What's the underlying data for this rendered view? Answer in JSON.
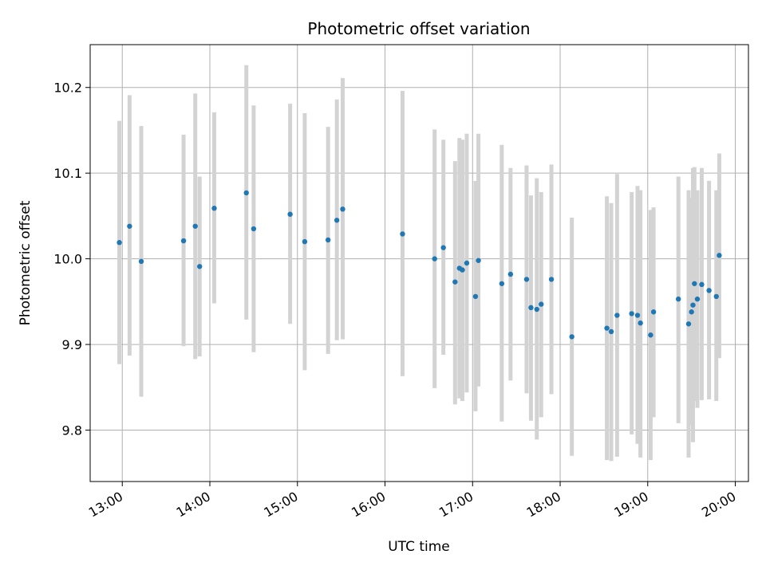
{
  "chart_data": {
    "type": "scatter",
    "title": "Photometric offset variation",
    "xlabel": "UTC time",
    "ylabel": "Photometric offset",
    "x_unit": "UTC time (HH:MM)",
    "xlim": [
      "12:38",
      "20:09"
    ],
    "ylim": [
      9.74,
      10.25
    ],
    "x_ticks": [
      "13:00",
      "14:00",
      "15:00",
      "16:00",
      "17:00",
      "18:00",
      "19:00",
      "20:00"
    ],
    "y_ticks": [
      9.8,
      9.9,
      10.0,
      10.1,
      10.2
    ],
    "y_tick_labels": [
      "9.8",
      "9.9",
      "10.0",
      "10.1",
      "10.2"
    ],
    "grid": true,
    "colors": {
      "point": "#1f77b4",
      "errorbar": "#d3d3d3",
      "grid": "#b0b0b0"
    },
    "points": [
      {
        "time": "12:58",
        "y": 10.019,
        "lo": 9.877,
        "hi": 10.161
      },
      {
        "time": "13:05",
        "y": 10.038,
        "lo": 9.887,
        "hi": 10.191
      },
      {
        "time": "13:13",
        "y": 9.997,
        "lo": 9.839,
        "hi": 10.155
      },
      {
        "time": "13:42",
        "y": 10.021,
        "lo": 9.898,
        "hi": 10.145
      },
      {
        "time": "13:50",
        "y": 10.038,
        "lo": 9.883,
        "hi": 10.193
      },
      {
        "time": "13:53",
        "y": 9.991,
        "lo": 9.886,
        "hi": 10.096
      },
      {
        "time": "14:03",
        "y": 10.059,
        "lo": 9.948,
        "hi": 10.171
      },
      {
        "time": "14:25",
        "y": 10.077,
        "lo": 9.929,
        "hi": 10.226
      },
      {
        "time": "14:30",
        "y": 10.035,
        "lo": 9.891,
        "hi": 10.179
      },
      {
        "time": "14:55",
        "y": 10.052,
        "lo": 9.924,
        "hi": 10.181
      },
      {
        "time": "15:05",
        "y": 10.02,
        "lo": 9.87,
        "hi": 10.17
      },
      {
        "time": "15:21",
        "y": 10.022,
        "lo": 9.889,
        "hi": 10.154
      },
      {
        "time": "15:27",
        "y": 10.045,
        "lo": 9.905,
        "hi": 10.186
      },
      {
        "time": "15:31",
        "y": 10.058,
        "lo": 9.906,
        "hi": 10.211
      },
      {
        "time": "16:12",
        "y": 10.029,
        "lo": 9.863,
        "hi": 10.196
      },
      {
        "time": "16:34",
        "y": 10.0,
        "lo": 9.849,
        "hi": 10.151
      },
      {
        "time": "16:40",
        "y": 10.013,
        "lo": 9.888,
        "hi": 10.139
      },
      {
        "time": "16:48",
        "y": 9.973,
        "lo": 9.83,
        "hi": 10.114
      },
      {
        "time": "16:51",
        "y": 9.989,
        "lo": 9.837,
        "hi": 10.141
      },
      {
        "time": "16:53",
        "y": 9.987,
        "lo": 9.834,
        "hi": 10.139
      },
      {
        "time": "16:56",
        "y": 9.995,
        "lo": 9.844,
        "hi": 10.146
      },
      {
        "time": "17:02",
        "y": 9.956,
        "lo": 9.822,
        "hi": 10.091
      },
      {
        "time": "17:04",
        "y": 9.998,
        "lo": 9.851,
        "hi": 10.146
      },
      {
        "time": "17:20",
        "y": 9.971,
        "lo": 9.81,
        "hi": 10.133
      },
      {
        "time": "17:26",
        "y": 9.982,
        "lo": 9.858,
        "hi": 10.106
      },
      {
        "time": "17:37",
        "y": 9.976,
        "lo": 9.843,
        "hi": 10.109
      },
      {
        "time": "17:40",
        "y": 9.943,
        "lo": 9.811,
        "hi": 10.074
      },
      {
        "time": "17:44",
        "y": 9.941,
        "lo": 9.789,
        "hi": 10.094
      },
      {
        "time": "17:47",
        "y": 9.947,
        "lo": 9.815,
        "hi": 10.078
      },
      {
        "time": "17:54",
        "y": 9.976,
        "lo": 9.842,
        "hi": 10.11
      },
      {
        "time": "18:08",
        "y": 9.909,
        "lo": 9.77,
        "hi": 10.048
      },
      {
        "time": "18:32",
        "y": 9.919,
        "lo": 9.765,
        "hi": 10.073
      },
      {
        "time": "18:35",
        "y": 9.915,
        "lo": 9.764,
        "hi": 10.065
      },
      {
        "time": "18:39",
        "y": 9.934,
        "lo": 9.769,
        "hi": 10.099
      },
      {
        "time": "18:49",
        "y": 9.936,
        "lo": 9.795,
        "hi": 10.078
      },
      {
        "time": "18:53",
        "y": 9.934,
        "lo": 9.784,
        "hi": 10.085
      },
      {
        "time": "18:55",
        "y": 9.925,
        "lo": 9.768,
        "hi": 10.08
      },
      {
        "time": "19:02",
        "y": 9.911,
        "lo": 9.765,
        "hi": 10.057
      },
      {
        "time": "19:04",
        "y": 9.938,
        "lo": 9.815,
        "hi": 10.06
      },
      {
        "time": "19:21",
        "y": 9.953,
        "lo": 9.808,
        "hi": 10.096
      },
      {
        "time": "19:28",
        "y": 9.924,
        "lo": 9.768,
        "hi": 10.08
      },
      {
        "time": "19:30",
        "y": 9.938,
        "lo": 9.806,
        "hi": 10.071
      },
      {
        "time": "19:31",
        "y": 9.946,
        "lo": 9.786,
        "hi": 10.106
      },
      {
        "time": "19:32",
        "y": 9.971,
        "lo": 9.834,
        "hi": 10.107
      },
      {
        "time": "19:34",
        "y": 9.953,
        "lo": 9.826,
        "hi": 10.08
      },
      {
        "time": "19:37",
        "y": 9.97,
        "lo": 9.835,
        "hi": 10.106
      },
      {
        "time": "19:42",
        "y": 9.963,
        "lo": 9.836,
        "hi": 10.091
      },
      {
        "time": "19:47",
        "y": 9.956,
        "lo": 9.834,
        "hi": 10.08
      },
      {
        "time": "19:49",
        "y": 10.004,
        "lo": 9.884,
        "hi": 10.123
      }
    ]
  }
}
